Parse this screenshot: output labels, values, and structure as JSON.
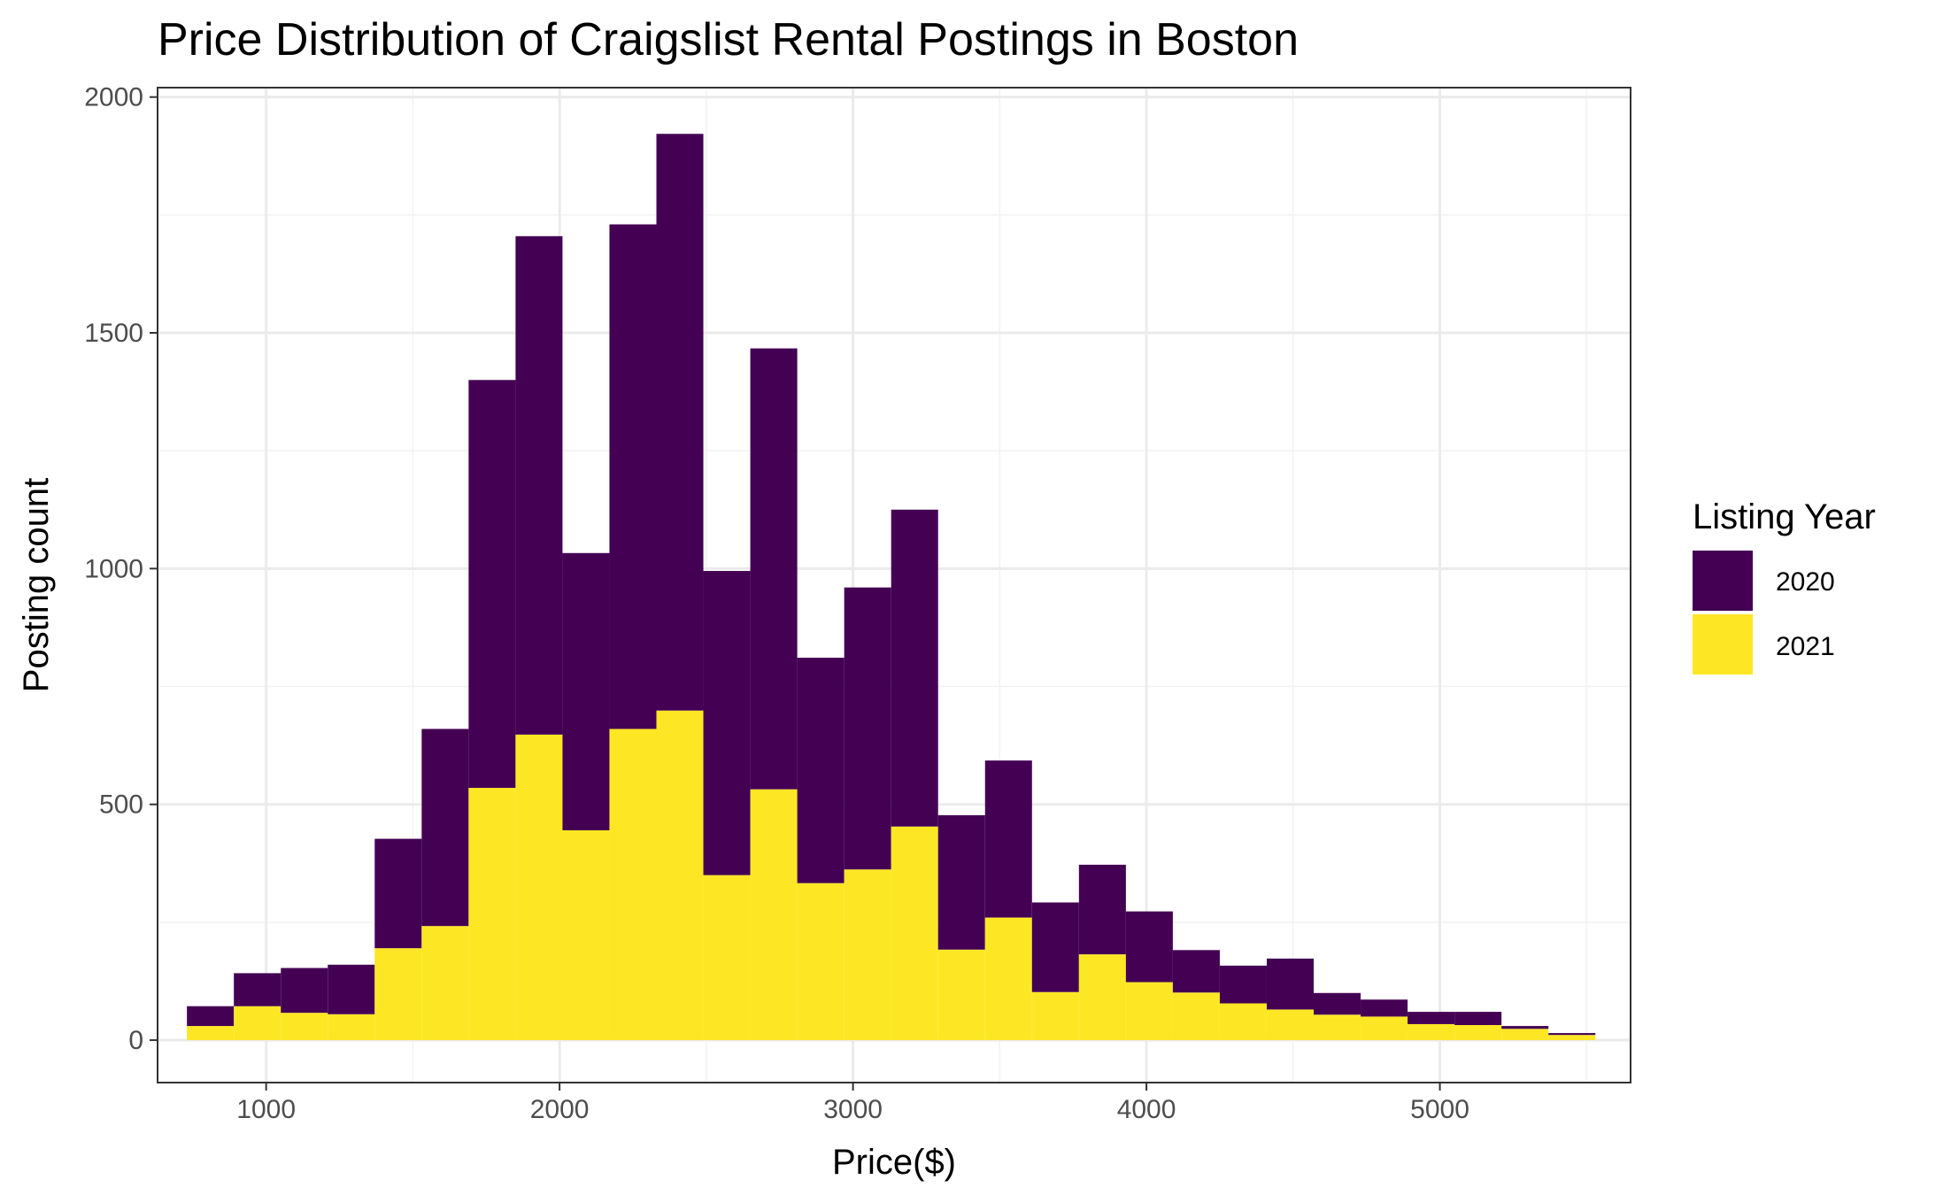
{
  "chart_data": {
    "type": "bar",
    "stacked": true,
    "title": "Price Distribution of Craigslist Rental Postings in Boston",
    "xlabel": "Price($)",
    "ylabel": "Posting count",
    "xlim": [
      630,
      5650
    ],
    "ylim": [
      -90,
      2020
    ],
    "x_ticks": [
      1000,
      2000,
      3000,
      4000,
      5000
    ],
    "y_ticks": [
      0,
      500,
      1000,
      1500,
      2000
    ],
    "grid": true,
    "legend": {
      "title": "Listing Year",
      "position": "right"
    },
    "bin_width": 160,
    "bin_centers": [
      810,
      970,
      1130,
      1290,
      1450,
      1610,
      1770,
      1930,
      2090,
      2250,
      2410,
      2570,
      2730,
      2890,
      3050,
      3210,
      3370,
      3530,
      3690,
      3850,
      4010,
      4170,
      4330,
      4490,
      4650,
      4810,
      4970,
      5130,
      5290,
      5450
    ],
    "series": [
      {
        "name": "2020",
        "color": "#440154",
        "totals": [
          72,
          142,
          153,
          160,
          427,
          660,
          1400,
          1705,
          1033,
          1730,
          1922,
          995,
          1467,
          811,
          960,
          1125,
          477,
          593,
          292,
          372,
          273,
          191,
          158,
          173,
          100,
          86,
          60,
          60,
          30,
          15
        ],
        "values": [
          42,
          70,
          95,
          105,
          232,
          418,
          865,
          1057,
          588,
          1070,
          1223,
          645,
          935,
          478,
          598,
          672,
          285,
          333,
          190,
          190,
          150,
          90,
          80,
          108,
          46,
          36,
          26,
          28,
          6,
          4
        ]
      },
      {
        "name": "2021",
        "color": "#FDE725",
        "values": [
          30,
          72,
          58,
          55,
          195,
          242,
          535,
          648,
          445,
          660,
          699,
          350,
          532,
          333,
          362,
          453,
          192,
          260,
          102,
          182,
          123,
          101,
          78,
          65,
          54,
          50,
          34,
          32,
          24,
          11
        ]
      }
    ]
  }
}
